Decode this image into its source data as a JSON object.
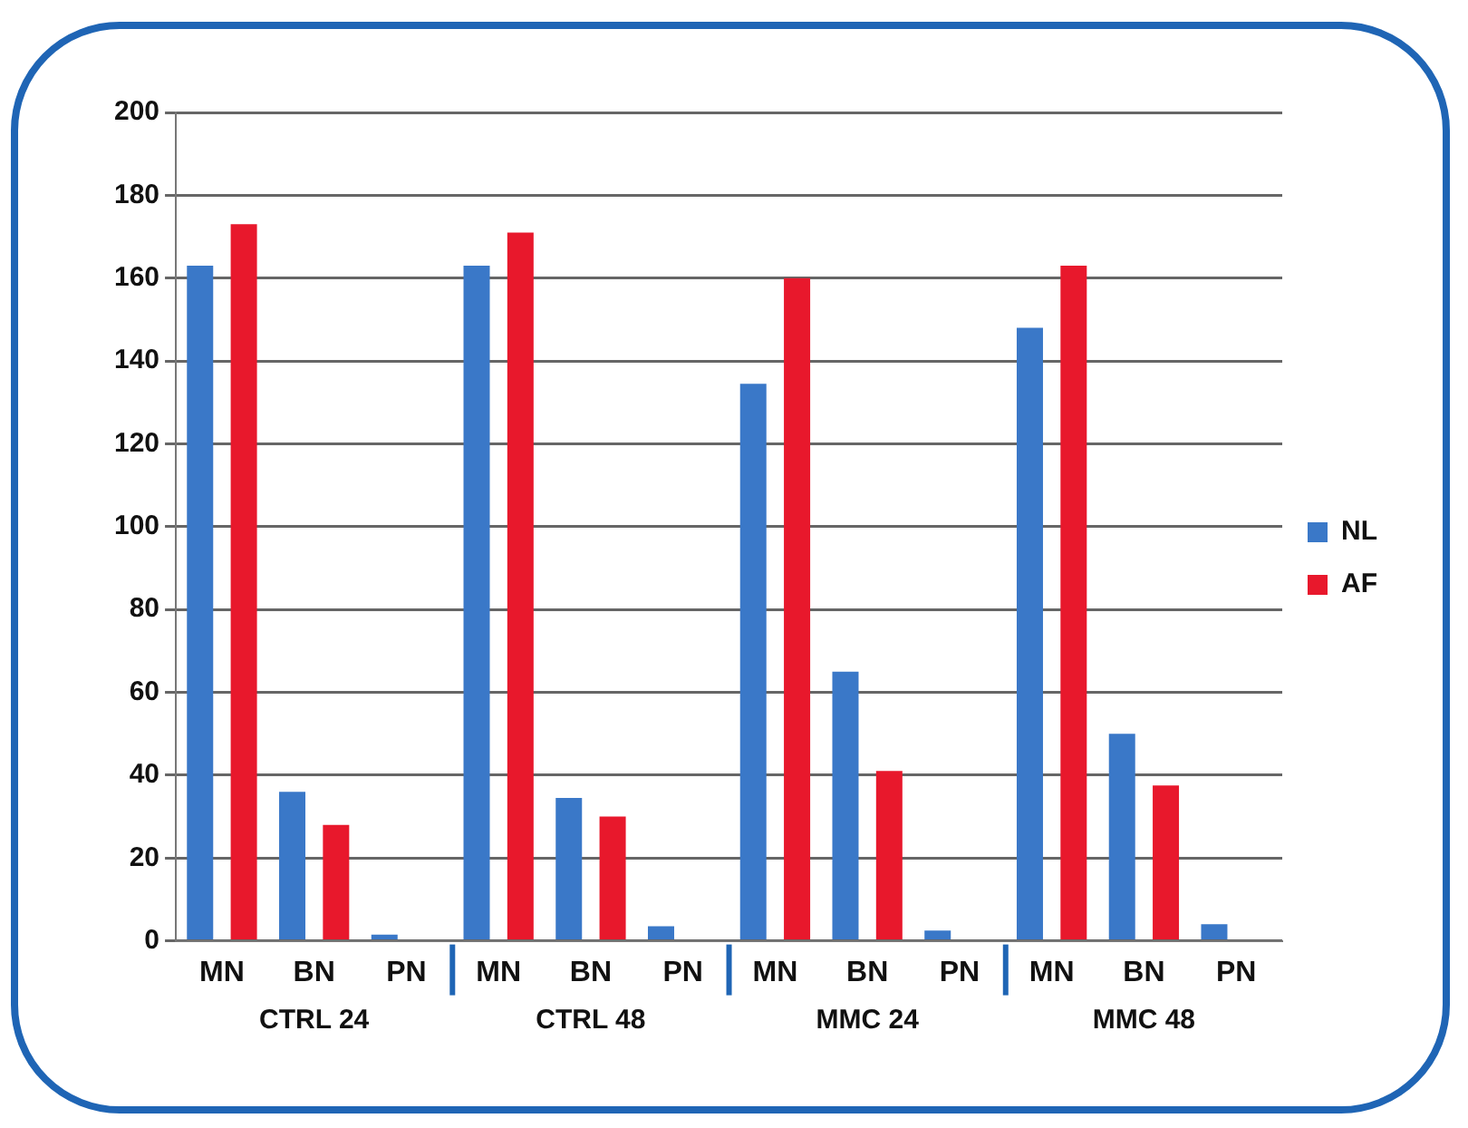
{
  "chart_data": {
    "type": "bar",
    "categories": [
      "MN",
      "BN",
      "PN",
      "MN",
      "BN",
      "PN",
      "MN",
      "BN",
      "PN",
      "MN",
      "BN",
      "PN"
    ],
    "series": [
      {
        "name": "NL",
        "color": "#3a78c8",
        "values": [
          163,
          36,
          1.5,
          163,
          34.5,
          3.5,
          134.5,
          65,
          2.5,
          148,
          50,
          4
        ]
      },
      {
        "name": "AF",
        "color": "#e8182c",
        "values": [
          173,
          28,
          0,
          171,
          30,
          0,
          160,
          41,
          0,
          163,
          37.5,
          0
        ]
      }
    ],
    "annotations": [
      "CTRL 24",
      "CTRL 48",
      "MMC 24",
      "MMC 48"
    ],
    "ylim": [
      0,
      200
    ],
    "yticks": [
      0,
      20,
      40,
      60,
      80,
      100,
      120,
      140,
      160,
      180,
      200
    ],
    "grid": "y",
    "legend": "right"
  }
}
